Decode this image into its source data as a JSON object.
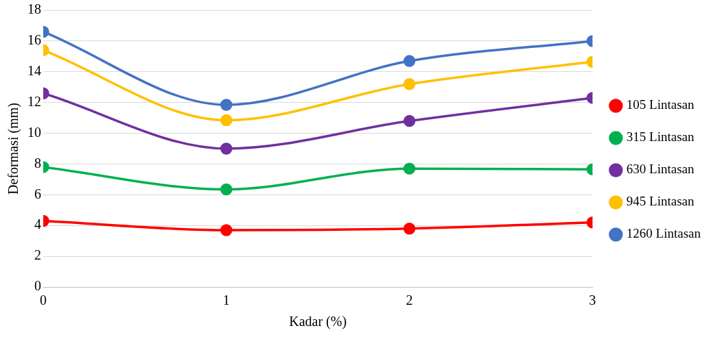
{
  "chart_data": {
    "type": "line",
    "xlabel": "Kadar (%)",
    "ylabel": "Deformasi (mm)",
    "x": [
      0,
      1,
      2,
      3
    ],
    "xlim": [
      0,
      3
    ],
    "xticks": [
      0,
      1,
      2,
      3
    ],
    "ylim": [
      0,
      18
    ],
    "yticks": [
      0,
      2,
      4,
      6,
      8,
      10,
      12,
      14,
      16,
      18
    ],
    "grid": "y",
    "legend": "right",
    "marker": "circle",
    "line_style": "solid",
    "series": [
      {
        "name": "105 Lintasan",
        "color": "#ff0000",
        "values": [
          4.3,
          3.7,
          3.8,
          4.2
        ]
      },
      {
        "name": "315 Lintasan",
        "color": "#00b050",
        "values": [
          7.8,
          6.35,
          7.7,
          7.65
        ]
      },
      {
        "name": "630 Lintasan",
        "color": "#7030a0",
        "values": [
          12.6,
          9.0,
          10.8,
          12.3
        ]
      },
      {
        "name": "945 Lintasan",
        "color": "#ffc000",
        "values": [
          15.4,
          10.85,
          13.2,
          14.65
        ]
      },
      {
        "name": "1260 Lintasan",
        "color": "#4472c4",
        "values": [
          16.6,
          11.85,
          14.7,
          16.0
        ]
      }
    ]
  }
}
